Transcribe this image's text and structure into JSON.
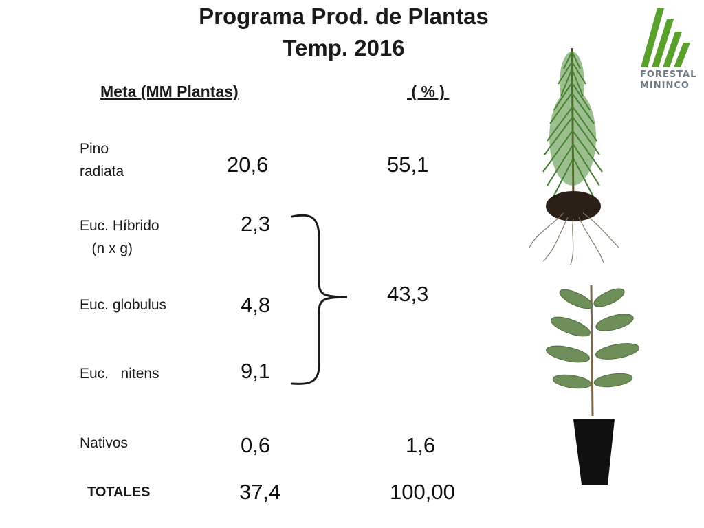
{
  "title": {
    "line1": "Programa Prod. de Plantas",
    "line2": "Temp. 2016"
  },
  "columns": {
    "meta": "Meta (MM Plantas)",
    "pct": " ( % ) "
  },
  "rows": [
    {
      "label_line1": "Pino",
      "label_line2": "radiata",
      "meta": "20,6",
      "pct": "55,1"
    },
    {
      "label_line1": "Euc. Híbrido",
      "label_line2": "   (n x g)",
      "meta": "2,3"
    },
    {
      "label_line1": "Euc. globulus",
      "meta": "4,8"
    },
    {
      "label_line1": "Euc.   nitens",
      "meta": "9,1"
    },
    {
      "label_line1": "Nativos",
      "meta": "0,6",
      "pct": "1,6"
    }
  ],
  "eucalyptus_group_pct": "43,3",
  "totals": {
    "label": "TOTALES",
    "meta": "37,4",
    "pct": "100,00"
  },
  "logo": {
    "line1": "FORESTAL",
    "line2": "MININCO",
    "color": "#5aa02c"
  },
  "images": {
    "pine": "pine-seedling",
    "eucalyptus": "eucalyptus-seedling"
  }
}
